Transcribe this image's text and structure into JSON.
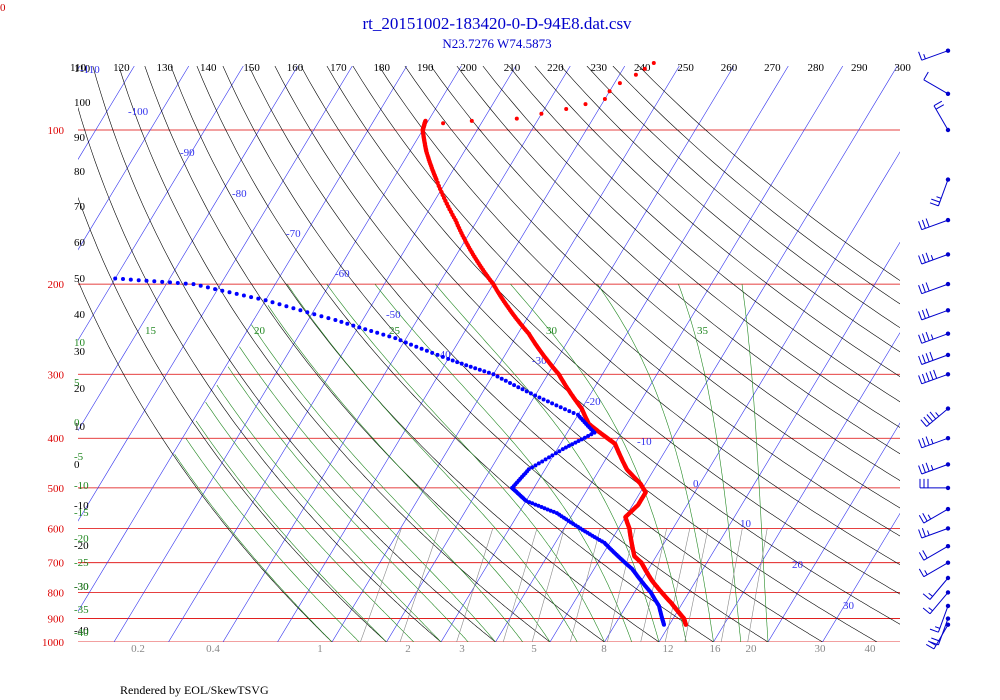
{
  "chart_data": {
    "type": "skew-t",
    "title": "rt_20151002-183420-0-D-94E8.dat.csv",
    "subtitle": "N23.7276 W74.5873",
    "corner_label": "0",
    "credit": "Rendered by EOL/SkewTSVG",
    "colors": {
      "temperature": "#ff0000",
      "dewpoint": "#0000ff",
      "isobar": "#dd0000",
      "isotherm": "#3333ee",
      "dry_adiabat": "#000000",
      "moist_adiabat": "#228822",
      "mixing_ratio": "#888888",
      "title": "#0000cc"
    },
    "pressure_labels": [
      "100",
      "200",
      "300",
      "400",
      "500",
      "600",
      "700",
      "800",
      "900",
      "1000"
    ],
    "pressure_levels": [
      100,
      200,
      300,
      400,
      500,
      600,
      700,
      800,
      900,
      1000
    ],
    "theta_top_labels": [
      "110",
      "120",
      "130",
      "140",
      "150",
      "160",
      "170",
      "180",
      "190",
      "200",
      "210",
      "220",
      "230",
      "240",
      "250",
      "260",
      "270",
      "280",
      "290",
      "300"
    ],
    "theta_left_labels": [
      "110",
      "100",
      "90",
      "80",
      "70",
      "60",
      "50",
      "40",
      "30",
      "20",
      "10",
      "0",
      "-10",
      "-20",
      "-30",
      "-40"
    ],
    "isotherm_labels": [
      "-110",
      "-100",
      "-90",
      "-80",
      "-70",
      "-60",
      "-50",
      "-40",
      "-30",
      "-20",
      "-10",
      "0",
      "10",
      "20",
      "30"
    ],
    "moist_adiabat_labels": [
      "15",
      "20",
      "25",
      "30",
      "35"
    ],
    "moist_left_labels": [
      "10",
      "5",
      "0",
      "-5",
      "-10",
      "-15",
      "-20",
      "-25",
      "-30",
      "-35",
      "-40"
    ],
    "mixing_ratio_labels": [
      "0.2",
      "0.4",
      "1",
      "2",
      "3",
      "5",
      "8",
      "12",
      "16",
      "20",
      "30",
      "40"
    ],
    "temperature": [
      [
        96,
        -80.5
      ],
      [
        100,
        -80
      ],
      [
        110,
        -77
      ],
      [
        125,
        -72
      ],
      [
        150,
        -64
      ],
      [
        175,
        -57
      ],
      [
        200,
        -50
      ],
      [
        225,
        -44
      ],
      [
        250,
        -38
      ],
      [
        275,
        -33
      ],
      [
        300,
        -28
      ],
      [
        325,
        -24
      ],
      [
        350,
        -20
      ],
      [
        375,
        -17
      ],
      [
        395,
        -13
      ],
      [
        410,
        -10
      ],
      [
        430,
        -8
      ],
      [
        460,
        -5
      ],
      [
        490,
        -1
      ],
      [
        510,
        1
      ],
      [
        540,
        1
      ],
      [
        570,
        0
      ],
      [
        600,
        2
      ],
      [
        640,
        4
      ],
      [
        680,
        6
      ],
      [
        700,
        8
      ],
      [
        730,
        10
      ],
      [
        760,
        12
      ],
      [
        800,
        15
      ],
      [
        840,
        18
      ],
      [
        870,
        20
      ],
      [
        900,
        22
      ],
      [
        925,
        23
      ]
    ],
    "dewpoint": [
      [
        195,
        -120
      ],
      [
        200,
        -105
      ],
      [
        215,
        -90
      ],
      [
        235,
        -75
      ],
      [
        255,
        -62
      ],
      [
        280,
        -50
      ],
      [
        300,
        -40
      ],
      [
        330,
        -30
      ],
      [
        360,
        -20
      ],
      [
        390,
        -15
      ],
      [
        420,
        -19
      ],
      [
        460,
        -23
      ],
      [
        500,
        -24
      ],
      [
        530,
        -20
      ],
      [
        560,
        -13
      ],
      [
        600,
        -7
      ],
      [
        640,
        -1
      ],
      [
        680,
        3
      ],
      [
        720,
        7
      ],
      [
        760,
        10
      ],
      [
        800,
        13
      ],
      [
        850,
        16
      ],
      [
        900,
        18
      ],
      [
        925,
        19
      ]
    ],
    "upper_temperature": [
      [
        74,
        -45
      ],
      [
        76,
        -46
      ],
      [
        78,
        -47
      ],
      [
        81,
        -49
      ],
      [
        84,
        -50
      ],
      [
        87,
        -50
      ],
      [
        89,
        -53
      ],
      [
        91,
        -56
      ],
      [
        93,
        -60
      ],
      [
        95,
        -64
      ],
      [
        96,
        -72
      ],
      [
        97,
        -77
      ]
    ],
    "wind_barbs": [
      {
        "p": 70,
        "dir": 250,
        "spd": 15
      },
      {
        "p": 85,
        "dir": 300,
        "spd": 10
      },
      {
        "p": 100,
        "dir": 330,
        "spd": 20
      },
      {
        "p": 125,
        "dir": 200,
        "spd": 25
      },
      {
        "p": 150,
        "dir": 250,
        "spd": 30
      },
      {
        "p": 175,
        "dir": 250,
        "spd": 35
      },
      {
        "p": 200,
        "dir": 250,
        "spd": 30
      },
      {
        "p": 225,
        "dir": 250,
        "spd": 30
      },
      {
        "p": 250,
        "dir": 250,
        "spd": 35
      },
      {
        "p": 275,
        "dir": 250,
        "spd": 40
      },
      {
        "p": 300,
        "dir": 250,
        "spd": 50
      },
      {
        "p": 350,
        "dir": 230,
        "spd": 45
      },
      {
        "p": 400,
        "dir": 250,
        "spd": 35
      },
      {
        "p": 450,
        "dir": 250,
        "spd": 35
      },
      {
        "p": 500,
        "dir": 270,
        "spd": 30
      },
      {
        "p": 550,
        "dir": 240,
        "spd": 25
      },
      {
        "p": 600,
        "dir": 250,
        "spd": 25
      },
      {
        "p": 650,
        "dir": 240,
        "spd": 20
      },
      {
        "p": 700,
        "dir": 240,
        "spd": 15
      },
      {
        "p": 750,
        "dir": 220,
        "spd": 15
      },
      {
        "p": 800,
        "dir": 220,
        "spd": 15
      },
      {
        "p": 850,
        "dir": 200,
        "spd": 15
      },
      {
        "p": 900,
        "dir": 200,
        "spd": 20
      },
      {
        "p": 925,
        "dir": 210,
        "spd": 20
      }
    ]
  }
}
